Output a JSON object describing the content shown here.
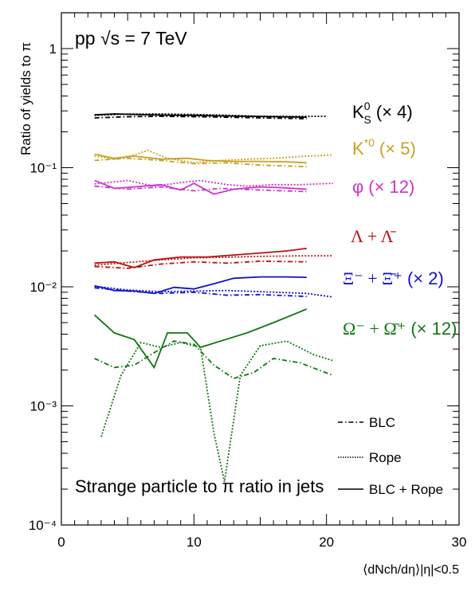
{
  "chart_data": {
    "type": "line",
    "title": "Strange particle to  π ratio in jets",
    "system": "pp  √s = 7 TeV",
    "ylabel": "Ratio of yields to π",
    "xlabel": "⟨dNch/dη⟩|η|<0.5",
    "xlim": [
      0,
      30
    ],
    "ylim": [
      0.0001,
      2
    ],
    "yscale": "log",
    "x_ticks": [
      0,
      10,
      20,
      30
    ],
    "x_tick_labels": [
      "0",
      "10",
      "20",
      "30"
    ],
    "y_ticks": [
      0.0001,
      0.001,
      0.01,
      0.1,
      1
    ],
    "y_tick_labels": [
      "10⁻⁴",
      "10⁻³",
      "10⁻²",
      "10⁻¹",
      "1"
    ],
    "grid": false,
    "legend_position": "bottom-right",
    "legend": [
      {
        "label": "BLC",
        "style": "dashdot"
      },
      {
        "label": "Rope",
        "style": "dotted"
      },
      {
        "label": "BLC + Rope",
        "style": "solid"
      }
    ],
    "series": [
      {
        "name": "K0S (× 4)",
        "color": "#000000",
        "label": {
          "base": "K",
          "sup": "0",
          "sub": "S",
          "suffix": "(× 4)"
        },
        "blc": {
          "x": [
            2.5,
            5,
            7.5,
            10,
            12.5,
            15,
            18.5
          ],
          "y": [
            0.262,
            0.268,
            0.27,
            0.268,
            0.265,
            0.262,
            0.258
          ]
        },
        "rope": {
          "x": [
            2.5,
            5,
            7.5,
            10,
            12.5,
            15,
            20
          ],
          "y": [
            0.275,
            0.282,
            0.283,
            0.28,
            0.276,
            0.27,
            0.27
          ]
        },
        "comb": {
          "x": [
            2.5,
            4,
            6,
            8,
            10,
            12,
            14,
            16,
            18.5
          ],
          "y": [
            0.278,
            0.283,
            0.279,
            0.276,
            0.275,
            0.272,
            0.27,
            0.268,
            0.265
          ]
        }
      },
      {
        "name": "K*0 (× 5)",
        "color": "#c8a020",
        "label": {
          "base": "K",
          "sup": "*0",
          "sub": "",
          "suffix": "(× 5)"
        },
        "blc": {
          "x": [
            2.5,
            5,
            7.5,
            10,
            12.5,
            15,
            18.5
          ],
          "y": [
            0.115,
            0.12,
            0.115,
            0.108,
            0.11,
            0.105,
            0.102
          ]
        },
        "rope": {
          "x": [
            2.5,
            4,
            5.5,
            6.5,
            8,
            10,
            12,
            14,
            16,
            18,
            20.5
          ],
          "y": [
            0.125,
            0.118,
            0.128,
            0.14,
            0.12,
            0.11,
            0.115,
            0.118,
            0.12,
            0.124,
            0.128
          ]
        },
        "comb": {
          "x": [
            2.5,
            4,
            5.5,
            7.5,
            9.5,
            11,
            13,
            15,
            17,
            18.5
          ],
          "y": [
            0.13,
            0.12,
            0.125,
            0.118,
            0.12,
            0.115,
            0.113,
            0.113,
            0.112,
            0.11
          ]
        }
      },
      {
        "name": "φ (× 12)",
        "color": "#cc33cc",
        "label": {
          "base": "φ",
          "sup": "",
          "sub": "",
          "suffix": "(× 12)"
        },
        "blc": {
          "x": [
            2.5,
            5,
            7.5,
            10,
            12,
            15,
            18.5
          ],
          "y": [
            0.07,
            0.066,
            0.069,
            0.064,
            0.067,
            0.065,
            0.063
          ]
        },
        "rope": {
          "x": [
            2.5,
            5,
            7,
            9,
            10.5,
            12.5,
            14,
            16,
            18,
            20.5
          ],
          "y": [
            0.073,
            0.078,
            0.07,
            0.075,
            0.078,
            0.072,
            0.07,
            0.072,
            0.072,
            0.074
          ]
        },
        "comb": {
          "x": [
            2.5,
            4,
            5.5,
            7.5,
            9,
            10,
            11.5,
            13,
            15,
            16.5,
            18.5
          ],
          "y": [
            0.078,
            0.067,
            0.069,
            0.072,
            0.065,
            0.074,
            0.06,
            0.066,
            0.069,
            0.068,
            0.066
          ]
        }
      },
      {
        "name": "Λ + Λ̄",
        "color": "#bb1111",
        "label": {
          "base": "Λ + Λ̄",
          "sup": "",
          "sub": "",
          "suffix": ""
        },
        "blc": {
          "x": [
            2.5,
            5,
            7.5,
            10,
            12.5,
            15,
            18.5
          ],
          "y": [
            0.0148,
            0.0143,
            0.0155,
            0.0162,
            0.0158,
            0.0164,
            0.0162
          ]
        },
        "rope": {
          "x": [
            2.5,
            5,
            7.5,
            10,
            12.5,
            15,
            18.5,
            20.5
          ],
          "y": [
            0.0152,
            0.016,
            0.0168,
            0.0175,
            0.0177,
            0.018,
            0.0182,
            0.0182
          ]
        },
        "comb": {
          "x": [
            2.5,
            4,
            5.5,
            7,
            9,
            11,
            13,
            15,
            17,
            18.5
          ],
          "y": [
            0.0158,
            0.0162,
            0.0145,
            0.0168,
            0.0178,
            0.0178,
            0.0185,
            0.0192,
            0.02,
            0.021
          ]
        }
      },
      {
        "name": "Ξ⁻ + Ξ̄⁺ (× 2)",
        "color": "#1111cc",
        "label": {
          "base": "Ξ⁻ + Ξ̄⁺",
          "sup": "",
          "sub": "",
          "suffix": "(× 2)"
        },
        "blc": {
          "x": [
            2.5,
            5,
            7.5,
            10,
            12.5,
            15,
            18.5
          ],
          "y": [
            0.0098,
            0.0092,
            0.0088,
            0.009,
            0.0085,
            0.0086,
            0.0083
          ]
        },
        "rope": {
          "x": [
            2.5,
            5,
            7.5,
            10,
            12.5,
            15,
            18.5,
            20.5
          ],
          "y": [
            0.0101,
            0.0094,
            0.0091,
            0.0092,
            0.0093,
            0.0091,
            0.0088,
            0.0082
          ]
        },
        "comb": {
          "x": [
            2.5,
            4,
            5.5,
            7,
            8.5,
            10,
            11.5,
            13,
            15,
            17,
            18.5
          ],
          "y": [
            0.0102,
            0.0093,
            0.0092,
            0.0088,
            0.0099,
            0.0096,
            0.0106,
            0.0118,
            0.0121,
            0.0121,
            0.012
          ]
        }
      },
      {
        "name": "Ω⁻ + Ω̄⁺ (× 12)",
        "color": "#117711",
        "label": {
          "base": "Ω⁻ + Ω̄⁺",
          "sup": "",
          "sub": "",
          "suffix": "(× 12)"
        },
        "blc": {
          "x": [
            2.5,
            4,
            5.5,
            7,
            8.5,
            10,
            11.5,
            13,
            14.5,
            16,
            18,
            20.5
          ],
          "y": [
            0.0025,
            0.0021,
            0.0022,
            0.0028,
            0.0035,
            0.0033,
            0.0022,
            0.0017,
            0.0019,
            0.0025,
            0.0023,
            0.0018
          ]
        },
        "rope": {
          "x": [
            3,
            4.5,
            6,
            7.5,
            9,
            10.5,
            11.5,
            12.3,
            13.5,
            15,
            17,
            19,
            20.5
          ],
          "y": [
            0.00055,
            0.0018,
            0.0034,
            0.0031,
            0.0034,
            0.0031,
            0.0006,
            0.00023,
            0.0018,
            0.0032,
            0.0035,
            0.0027,
            0.0024
          ]
        },
        "comb": {
          "x": [
            2.5,
            4,
            5.5,
            7,
            8,
            9.5,
            10.5,
            12,
            14,
            16,
            18.5
          ],
          "y": [
            0.0058,
            0.0041,
            0.0036,
            0.0021,
            0.0041,
            0.0041,
            0.0031,
            0.0035,
            0.0041,
            0.005,
            0.0065
          ]
        }
      }
    ]
  }
}
